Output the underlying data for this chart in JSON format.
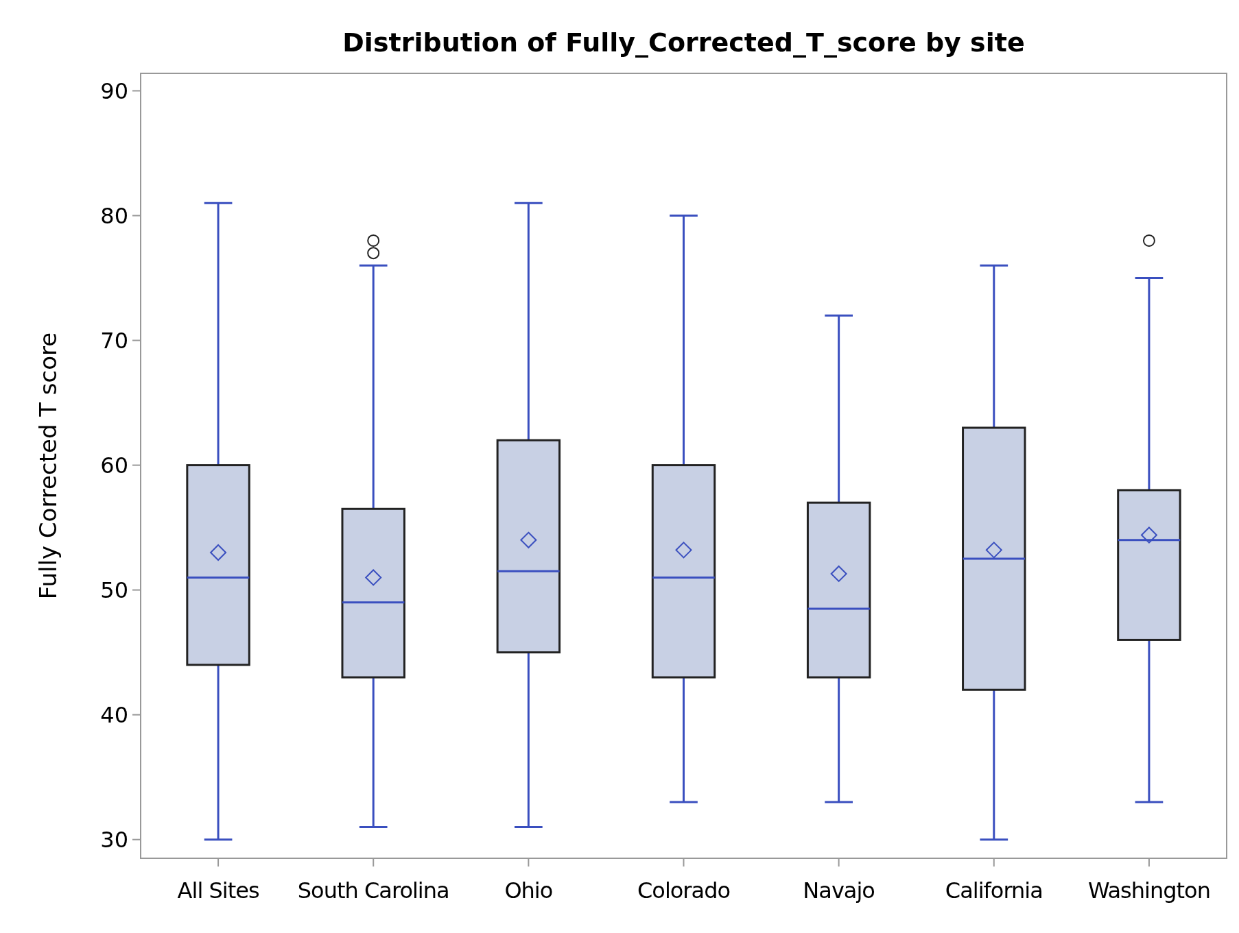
{
  "chart_data": {
    "type": "box",
    "title": "Distribution of Fully_Corrected_T_score by site",
    "ylabel": "Fully Corrected T score",
    "categories": [
      "All Sites",
      "South Carolina",
      "Ohio",
      "Colorado",
      "Navajo",
      "California",
      "Washington"
    ],
    "color": "#c8d0e4",
    "boxes": [
      {
        "low": 30,
        "q1": 44,
        "median": 51,
        "q3": 60,
        "high": 81,
        "mean": 53
      },
      {
        "low": 31,
        "q1": 43,
        "median": 49,
        "q3": 56.5,
        "high": 76,
        "mean": 51,
        "outliers": [
          77,
          78
        ]
      },
      {
        "low": 31,
        "q1": 45,
        "median": 51.5,
        "q3": 62,
        "high": 81,
        "mean": 54
      },
      {
        "low": 33,
        "q1": 43,
        "median": 51,
        "q3": 60,
        "high": 80,
        "mean": 53.2
      },
      {
        "low": 33,
        "q1": 43,
        "median": 48.5,
        "q3": 57,
        "high": 72,
        "mean": 51.3
      },
      {
        "low": 30,
        "q1": 42,
        "median": 52.5,
        "q3": 63,
        "high": 76,
        "mean": 53.2
      },
      {
        "low": 33,
        "q1": 46,
        "median": 54,
        "q3": 58,
        "high": 75,
        "mean": 54.4,
        "outliers": [
          78
        ]
      }
    ],
    "ylim": [
      28.5,
      91.4
    ],
    "yticks": [
      30,
      40,
      50,
      60,
      70,
      80,
      90
    ],
    "grid": false
  }
}
